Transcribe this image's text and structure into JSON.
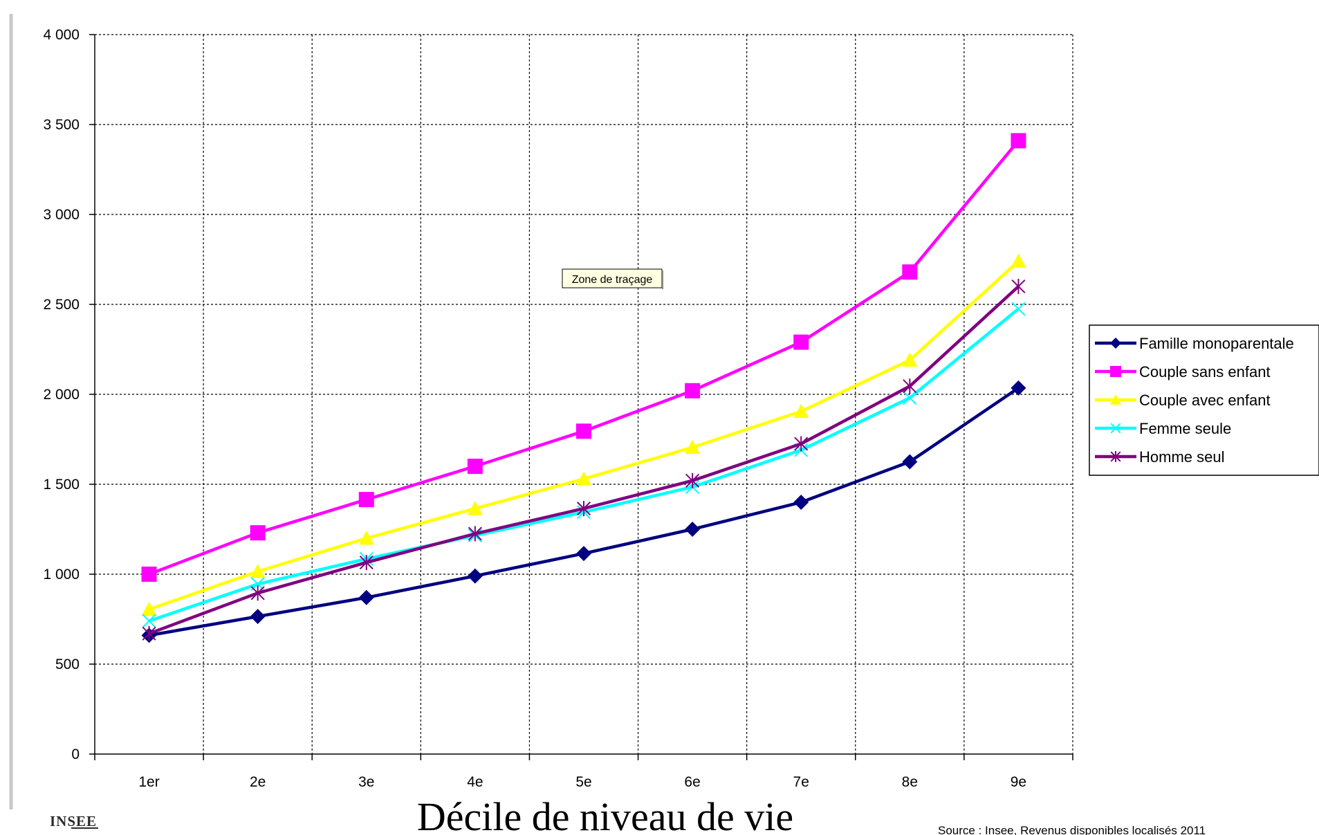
{
  "chart_data": {
    "type": "line",
    "title": "",
    "xlabel": "Décile de niveau de vie",
    "ylabel": "",
    "categories": [
      "1er",
      "2e",
      "3e",
      "4e",
      "5e",
      "6e",
      "7e",
      "8e",
      "9e"
    ],
    "ylim": [
      0,
      4000
    ],
    "yticks": [
      {
        "value": 0,
        "label": "0"
      },
      {
        "value": 500,
        "label": "500"
      },
      {
        "value": 1000,
        "label": "1 000"
      },
      {
        "value": 1500,
        "label": "1 500"
      },
      {
        "value": 2000,
        "label": "2 000"
      },
      {
        "value": 2500,
        "label": "2 500"
      },
      {
        "value": 3000,
        "label": "3 000"
      },
      {
        "value": 3500,
        "label": "3 500"
      },
      {
        "value": 4000,
        "label": "4 000"
      }
    ],
    "grid": true,
    "legend_position": "right",
    "series": [
      {
        "name": "Famille monoparentale",
        "color": "#000080",
        "marker": "diamond",
        "values": [
          660,
          765,
          870,
          990,
          1115,
          1250,
          1400,
          1625,
          2035
        ]
      },
      {
        "name": "Couple sans enfant",
        "color": "#FF00FF",
        "marker": "square",
        "values": [
          1000,
          1230,
          1415,
          1600,
          1795,
          2020,
          2290,
          2680,
          3410
        ]
      },
      {
        "name": "Couple avec enfant",
        "color": "#FFFF00",
        "marker": "triangle",
        "values": [
          805,
          1015,
          1200,
          1365,
          1530,
          1705,
          1905,
          2190,
          2740
        ]
      },
      {
        "name": "Femme seule",
        "color": "#00FFFF",
        "marker": "x",
        "values": [
          740,
          945,
          1085,
          1215,
          1345,
          1485,
          1690,
          1980,
          2475
        ]
      },
      {
        "name": "Homme seul",
        "color": "#800080",
        "marker": "star",
        "values": [
          670,
          895,
          1065,
          1225,
          1365,
          1520,
          1725,
          2045,
          2600
        ]
      }
    ]
  },
  "tooltip": "Zone de traçage",
  "logo": "INSEE",
  "source": "Source : Insee, Revenus disponibles localisés 2011"
}
